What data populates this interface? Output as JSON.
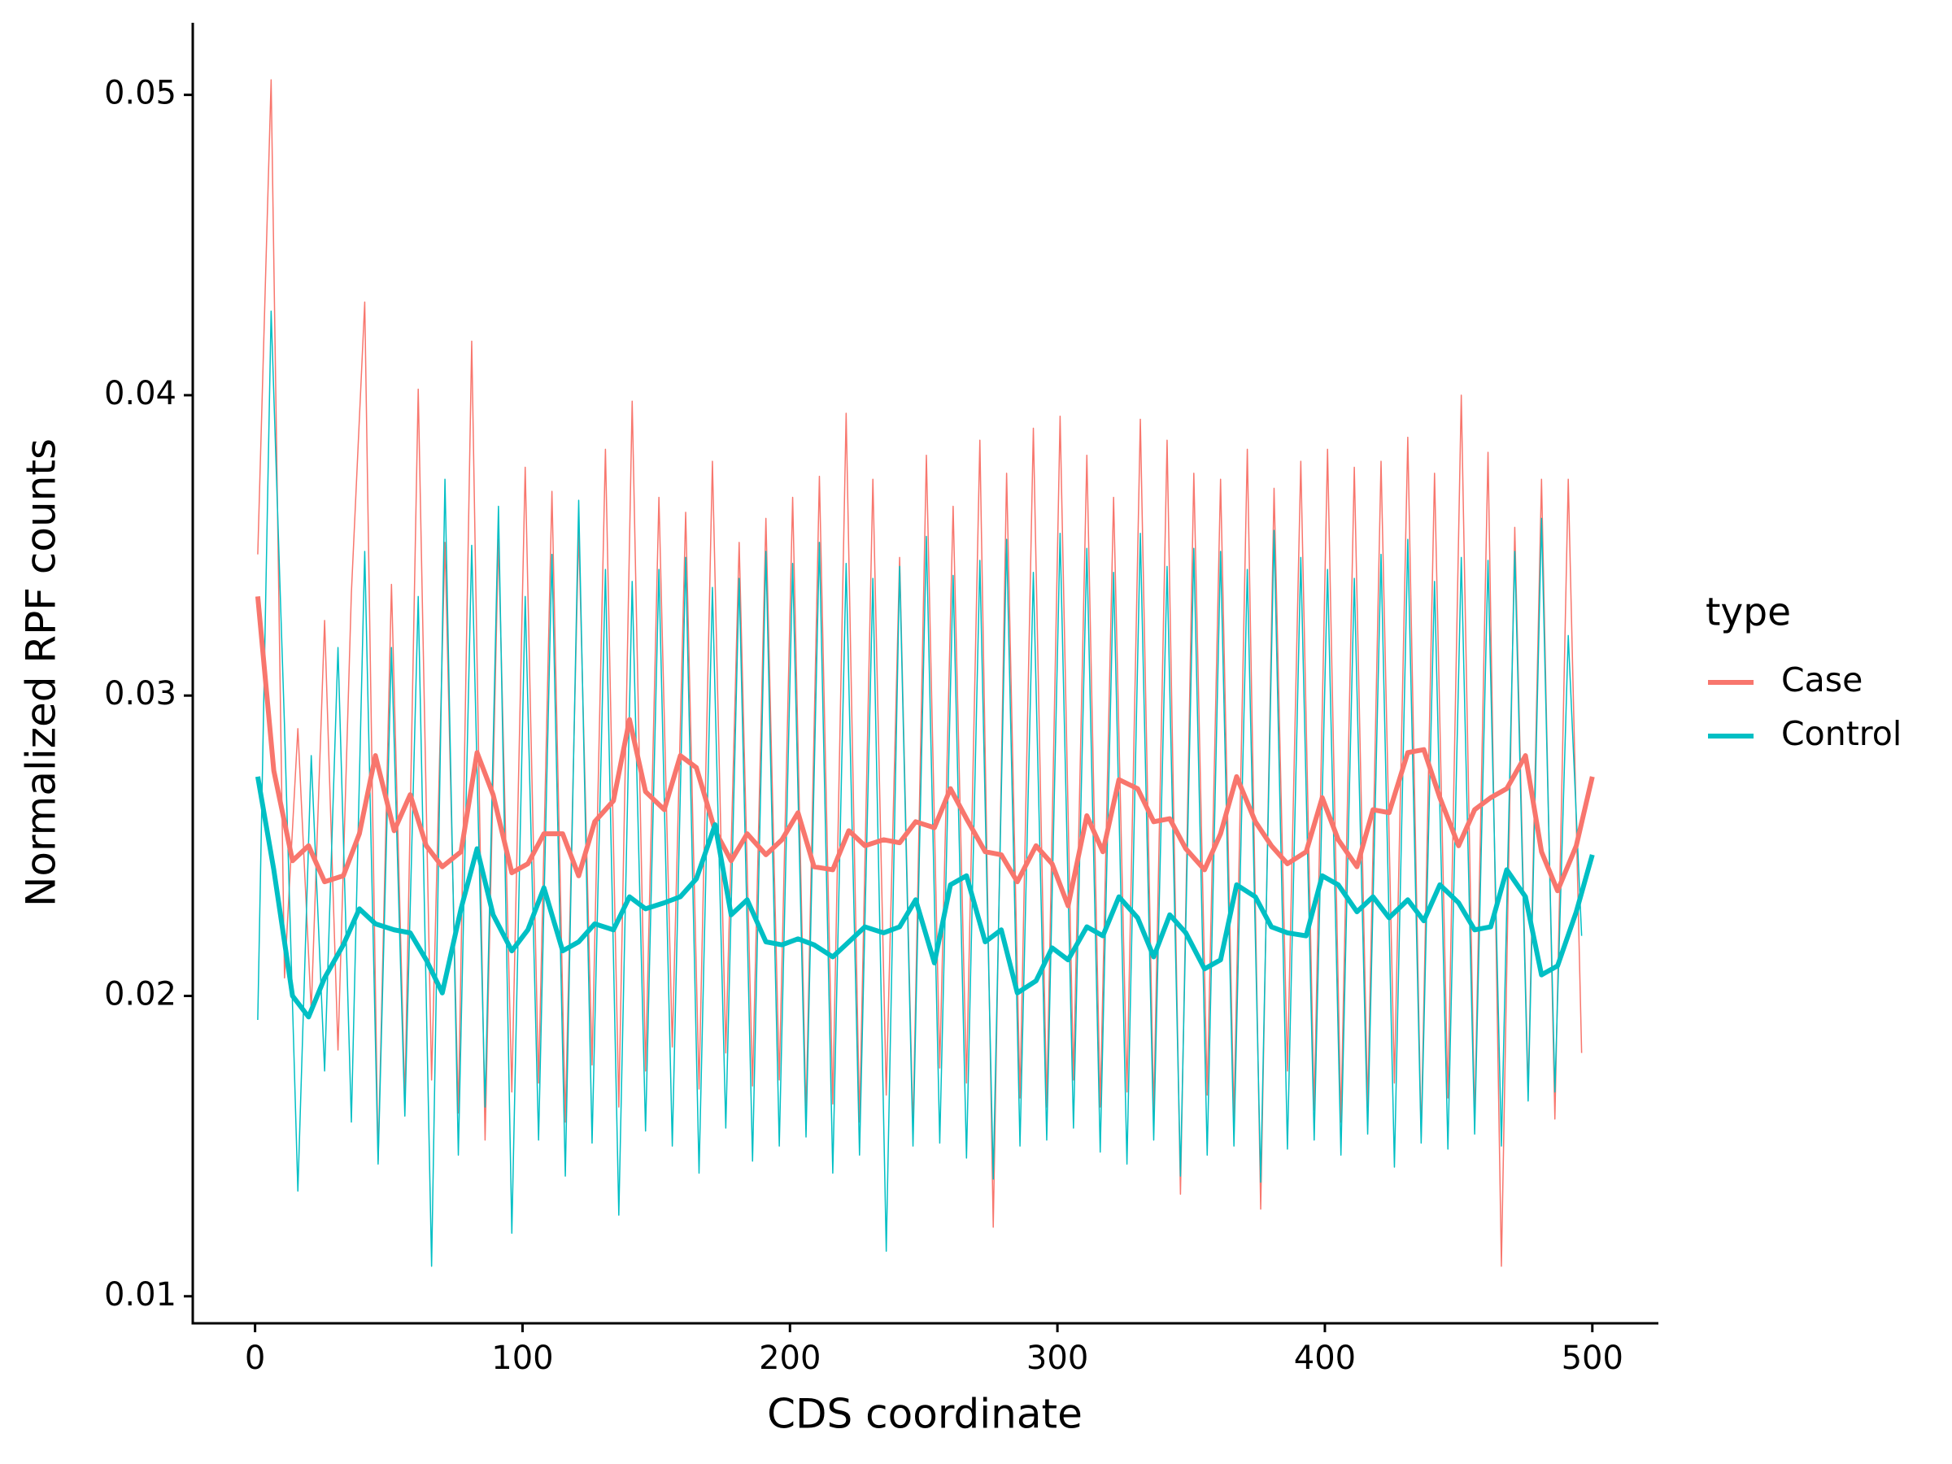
{
  "chart_data": {
    "type": "line",
    "x_label": "CDS coordinate",
    "y_label": "Normalized RPF counts",
    "legend_title": "type",
    "xlim": [
      -23.3,
      524.7
    ],
    "ylim": [
      0.0091,
      0.0524
    ],
    "xticks": [
      0,
      100,
      200,
      300,
      400,
      500
    ],
    "yticks": [
      0.01,
      0.02,
      0.03,
      0.04,
      0.05
    ],
    "x": [
      1,
      7,
      14,
      20,
      26,
      33,
      39,
      45,
      52,
      58,
      64,
      70,
      77,
      83,
      89,
      96,
      102,
      108,
      115,
      121,
      127,
      134,
      140,
      146,
      153,
      159,
      165,
      172,
      178,
      184,
      191,
      197,
      203,
      209,
      216,
      222,
      228,
      235,
      241,
      247,
      254,
      260,
      266,
      273,
      279,
      285,
      292,
      298,
      304,
      311,
      317,
      323,
      330,
      336,
      342,
      348,
      355,
      361,
      367,
      374,
      380,
      386,
      393,
      399,
      405,
      412,
      418,
      424,
      431,
      437,
      443,
      450,
      456,
      462,
      468,
      475,
      481,
      487,
      494,
      500
    ],
    "raw_x": [
      1,
      6,
      11,
      16,
      21,
      26,
      31,
      36,
      41,
      46,
      51,
      56,
      61,
      66,
      71,
      76,
      81,
      86,
      91,
      96,
      101,
      106,
      111,
      116,
      121,
      126,
      131,
      136,
      141,
      146,
      151,
      156,
      161,
      166,
      171,
      176,
      181,
      186,
      191,
      196,
      201,
      206,
      211,
      216,
      221,
      226,
      231,
      236,
      241,
      246,
      251,
      256,
      261,
      266,
      271,
      276,
      281,
      286,
      291,
      296,
      301,
      306,
      311,
      316,
      321,
      326,
      331,
      336,
      341,
      346,
      351,
      356,
      361,
      366,
      371,
      376,
      381,
      386,
      391,
      396,
      401,
      406,
      411,
      416,
      421,
      426,
      431,
      436,
      441,
      446,
      451,
      456,
      461,
      466,
      471,
      476,
      481,
      486,
      491,
      496
    ],
    "series": [
      {
        "name": "Case",
        "color": "#F8766D",
        "values": [
          0.0333,
          0.0275,
          0.0245,
          0.025,
          0.0238,
          0.024,
          0.0254,
          0.028,
          0.0255,
          0.0267,
          0.025,
          0.0243,
          0.0248,
          0.0281,
          0.0267,
          0.0241,
          0.0244,
          0.0254,
          0.0254,
          0.024,
          0.0258,
          0.0265,
          0.0292,
          0.0268,
          0.0262,
          0.028,
          0.0276,
          0.0255,
          0.0245,
          0.0254,
          0.0247,
          0.0252,
          0.0261,
          0.0243,
          0.0242,
          0.0255,
          0.025,
          0.0252,
          0.0251,
          0.0258,
          0.0256,
          0.0269,
          0.0259,
          0.0248,
          0.0247,
          0.0238,
          0.025,
          0.0244,
          0.023,
          0.026,
          0.0248,
          0.0272,
          0.0269,
          0.0258,
          0.0259,
          0.0249,
          0.0242,
          0.0254,
          0.0273,
          0.0258,
          0.025,
          0.0244,
          0.0248,
          0.0266,
          0.0252,
          0.0243,
          0.0262,
          0.0261,
          0.0281,
          0.0282,
          0.0266,
          0.025,
          0.0262,
          0.0266,
          0.0269,
          0.028,
          0.0248,
          0.0235,
          0.025,
          0.0273
        ],
        "raw_values": [
          0.0347,
          0.0505,
          0.0206,
          0.0289,
          0.0195,
          0.0325,
          0.0182,
          0.0334,
          0.0431,
          0.0145,
          0.0337,
          0.0165,
          0.0402,
          0.0172,
          0.0351,
          0.0161,
          0.0418,
          0.0152,
          0.0352,
          0.0168,
          0.0376,
          0.0171,
          0.0368,
          0.0158,
          0.0355,
          0.0177,
          0.0382,
          0.0163,
          0.0398,
          0.0175,
          0.0366,
          0.0183,
          0.0361,
          0.0169,
          0.0378,
          0.0181,
          0.0351,
          0.017,
          0.0359,
          0.0172,
          0.0366,
          0.016,
          0.0373,
          0.0164,
          0.0394,
          0.0158,
          0.0372,
          0.0167,
          0.0346,
          0.0155,
          0.038,
          0.0176,
          0.0363,
          0.0171,
          0.0385,
          0.0123,
          0.0374,
          0.0166,
          0.0389,
          0.0163,
          0.0393,
          0.0172,
          0.038,
          0.0163,
          0.0366,
          0.0168,
          0.0392,
          0.0161,
          0.0385,
          0.0134,
          0.0374,
          0.0167,
          0.0372,
          0.0159,
          0.0382,
          0.0129,
          0.0369,
          0.0175,
          0.0378,
          0.0162,
          0.0382,
          0.0158,
          0.0376,
          0.0163,
          0.0378,
          0.0171,
          0.0386,
          0.0153,
          0.0374,
          0.0166,
          0.04,
          0.0158,
          0.0381,
          0.011,
          0.0356,
          0.0168,
          0.0372,
          0.0159,
          0.0372,
          0.0181
        ]
      },
      {
        "name": "Control",
        "color": "#00BFC4",
        "values": [
          0.0273,
          0.0242,
          0.02,
          0.0193,
          0.0206,
          0.0217,
          0.0229,
          0.0224,
          0.0222,
          0.0221,
          0.0212,
          0.0201,
          0.0229,
          0.0249,
          0.0227,
          0.0215,
          0.0222,
          0.0236,
          0.0215,
          0.0218,
          0.0224,
          0.0222,
          0.0233,
          0.0229,
          0.0231,
          0.0233,
          0.0239,
          0.0257,
          0.0227,
          0.0232,
          0.0218,
          0.0217,
          0.0219,
          0.0217,
          0.0213,
          0.0218,
          0.0223,
          0.0221,
          0.0223,
          0.0232,
          0.0211,
          0.0237,
          0.024,
          0.0218,
          0.0222,
          0.0201,
          0.0205,
          0.0216,
          0.0212,
          0.0223,
          0.022,
          0.0233,
          0.0226,
          0.0213,
          0.0227,
          0.0221,
          0.0209,
          0.0212,
          0.0237,
          0.0233,
          0.0223,
          0.0221,
          0.022,
          0.024,
          0.0237,
          0.0228,
          0.0233,
          0.0226,
          0.0232,
          0.0225,
          0.0237,
          0.0231,
          0.0222,
          0.0223,
          0.0242,
          0.0233,
          0.0207,
          0.021,
          0.0228,
          0.0247
        ],
        "raw_values": [
          0.0192,
          0.0428,
          0.029,
          0.0135,
          0.028,
          0.0175,
          0.0316,
          0.0158,
          0.0348,
          0.0144,
          0.0316,
          0.016,
          0.0333,
          0.011,
          0.0372,
          0.0147,
          0.035,
          0.0163,
          0.0363,
          0.0121,
          0.0333,
          0.0152,
          0.0347,
          0.014,
          0.0365,
          0.0151,
          0.0342,
          0.0127,
          0.0338,
          0.0155,
          0.0342,
          0.015,
          0.0346,
          0.0141,
          0.0336,
          0.0156,
          0.0339,
          0.0145,
          0.0348,
          0.015,
          0.0344,
          0.0153,
          0.0351,
          0.0141,
          0.0344,
          0.0147,
          0.0339,
          0.0115,
          0.0343,
          0.015,
          0.0353,
          0.0151,
          0.034,
          0.0146,
          0.0345,
          0.0139,
          0.0352,
          0.015,
          0.0341,
          0.0152,
          0.0354,
          0.0156,
          0.0349,
          0.0148,
          0.0341,
          0.0144,
          0.0354,
          0.0152,
          0.0343,
          0.014,
          0.0349,
          0.0147,
          0.0348,
          0.015,
          0.0342,
          0.0138,
          0.0355,
          0.0149,
          0.0346,
          0.0152,
          0.0342,
          0.0147,
          0.0339,
          0.0154,
          0.0347,
          0.0143,
          0.0352,
          0.0151,
          0.0338,
          0.0149,
          0.0346,
          0.0154,
          0.0345,
          0.015,
          0.0348,
          0.0165,
          0.0359,
          0.0168,
          0.032,
          0.022
        ]
      }
    ]
  }
}
